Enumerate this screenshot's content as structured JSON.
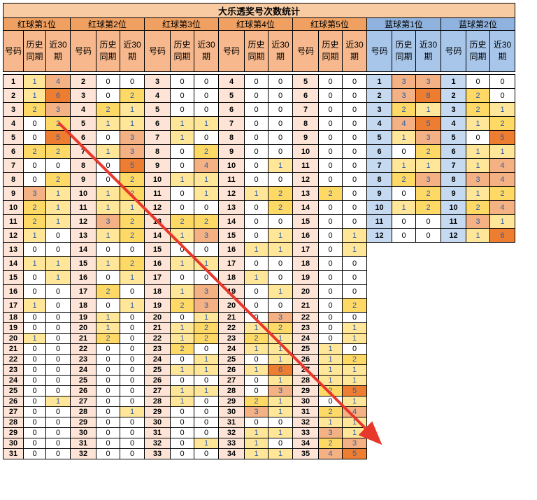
{
  "title": "大乐透奖号次数统计",
  "group_labels": [
    "红球第1位",
    "红球第2位",
    "红球第3位",
    "红球第4位",
    "红球第5位",
    "蓝球第1位",
    "蓝球第2位"
  ],
  "col_headers": {
    "number": "号码",
    "history": "历史同期",
    "recent30": "近30期"
  },
  "red_groups": [
    {
      "rows": [
        [
          "1",
          "1",
          "4"
        ],
        [
          "2",
          "1",
          "6"
        ],
        [
          "3",
          "2",
          "3"
        ],
        [
          "4",
          "0",
          "2"
        ],
        [
          "5",
          "0",
          "5"
        ],
        [
          "6",
          "2",
          "2"
        ],
        [
          "7",
          "0",
          "0"
        ],
        [
          "8",
          "0",
          "2"
        ],
        [
          "9",
          "3",
          "1"
        ],
        [
          "10",
          "2",
          "1"
        ],
        [
          "11",
          "2",
          "1"
        ],
        [
          "12",
          "1",
          "0"
        ],
        [
          "13",
          "0",
          "0"
        ],
        [
          "14",
          "1",
          "1"
        ],
        [
          "15",
          "0",
          "1"
        ],
        [
          "16",
          "0",
          "0"
        ],
        [
          "17",
          "1",
          "0"
        ],
        [
          "18",
          "0",
          "0"
        ],
        [
          "19",
          "0",
          "0"
        ],
        [
          "20",
          "1",
          "0"
        ],
        [
          "21",
          "0",
          "0"
        ],
        [
          "22",
          "0",
          "0"
        ],
        [
          "23",
          "0",
          "0"
        ],
        [
          "24",
          "0",
          "0"
        ],
        [
          "25",
          "0",
          "0"
        ],
        [
          "26",
          "0",
          "1"
        ],
        [
          "27",
          "0",
          "0"
        ],
        [
          "28",
          "0",
          "0"
        ],
        [
          "29",
          "0",
          "0"
        ],
        [
          "30",
          "0",
          "0"
        ],
        [
          "31",
          "0",
          "0"
        ]
      ]
    },
    {
      "rows": [
        [
          "2",
          "0",
          "0"
        ],
        [
          "3",
          "0",
          "2"
        ],
        [
          "4",
          "2",
          "1"
        ],
        [
          "5",
          "1",
          "1"
        ],
        [
          "6",
          "0",
          "3"
        ],
        [
          "7",
          "1",
          "3"
        ],
        [
          "8",
          "0",
          "5"
        ],
        [
          "9",
          "0",
          "2"
        ],
        [
          "10",
          "1",
          "2"
        ],
        [
          "11",
          "1",
          "1"
        ],
        [
          "12",
          "3",
          "2"
        ],
        [
          "13",
          "1",
          "2"
        ],
        [
          "14",
          "0",
          "0"
        ],
        [
          "15",
          "1",
          "2"
        ],
        [
          "16",
          "0",
          "1"
        ],
        [
          "17",
          "2",
          "0"
        ],
        [
          "18",
          "0",
          "1"
        ],
        [
          "19",
          "1",
          "0"
        ],
        [
          "20",
          "1",
          "0"
        ],
        [
          "21",
          "2",
          "0"
        ],
        [
          "22",
          "0",
          "0"
        ],
        [
          "23",
          "0",
          "0"
        ],
        [
          "24",
          "0",
          "0"
        ],
        [
          "25",
          "0",
          "0"
        ],
        [
          "26",
          "0",
          "0"
        ],
        [
          "27",
          "0",
          "0"
        ],
        [
          "28",
          "0",
          "1"
        ],
        [
          "29",
          "0",
          "0"
        ],
        [
          "30",
          "0",
          "0"
        ],
        [
          "31",
          "0",
          "0"
        ],
        [
          "32",
          "0",
          "0"
        ]
      ]
    },
    {
      "rows": [
        [
          "3",
          "0",
          "0"
        ],
        [
          "4",
          "0",
          "0"
        ],
        [
          "5",
          "0",
          "0"
        ],
        [
          "6",
          "1",
          "1"
        ],
        [
          "7",
          "1",
          "0"
        ],
        [
          "8",
          "0",
          "2"
        ],
        [
          "9",
          "0",
          "4"
        ],
        [
          "10",
          "1",
          "1"
        ],
        [
          "11",
          "0",
          "1"
        ],
        [
          "12",
          "0",
          "0"
        ],
        [
          "13",
          "2",
          "2"
        ],
        [
          "14",
          "1",
          "3"
        ],
        [
          "15",
          "0",
          "0"
        ],
        [
          "16",
          "1",
          "1"
        ],
        [
          "17",
          "0",
          "0"
        ],
        [
          "18",
          "1",
          "3"
        ],
        [
          "19",
          "2",
          "3"
        ],
        [
          "20",
          "0",
          "1"
        ],
        [
          "21",
          "1",
          "2"
        ],
        [
          "22",
          "1",
          "2"
        ],
        [
          "23",
          "2",
          "0"
        ],
        [
          "24",
          "0",
          "1"
        ],
        [
          "25",
          "1",
          "1"
        ],
        [
          "26",
          "0",
          "0"
        ],
        [
          "27",
          "1",
          "1"
        ],
        [
          "28",
          "1",
          "0"
        ],
        [
          "29",
          "0",
          "0"
        ],
        [
          "30",
          "0",
          "0"
        ],
        [
          "31",
          "0",
          "0"
        ],
        [
          "32",
          "0",
          "1"
        ],
        [
          "33",
          "0",
          "0"
        ]
      ]
    },
    {
      "rows": [
        [
          "4",
          "0",
          "0"
        ],
        [
          "5",
          "0",
          "0"
        ],
        [
          "6",
          "0",
          "0"
        ],
        [
          "7",
          "0",
          "0"
        ],
        [
          "8",
          "0",
          "0"
        ],
        [
          "9",
          "0",
          "0"
        ],
        [
          "10",
          "0",
          "1"
        ],
        [
          "11",
          "0",
          "0"
        ],
        [
          "12",
          "1",
          "2"
        ],
        [
          "13",
          "0",
          "2"
        ],
        [
          "14",
          "0",
          "0"
        ],
        [
          "15",
          "0",
          "1"
        ],
        [
          "16",
          "1",
          "1"
        ],
        [
          "17",
          "0",
          "0"
        ],
        [
          "18",
          "1",
          "0"
        ],
        [
          "19",
          "0",
          "1"
        ],
        [
          "20",
          "0",
          "0"
        ],
        [
          "21",
          "0",
          "3"
        ],
        [
          "22",
          "1",
          "2"
        ],
        [
          "23",
          "2",
          "1"
        ],
        [
          "24",
          "1",
          "1"
        ],
        [
          "25",
          "0",
          "1"
        ],
        [
          "26",
          "1",
          "6"
        ],
        [
          "27",
          "0",
          "1"
        ],
        [
          "28",
          "0",
          "3"
        ],
        [
          "29",
          "2",
          "1"
        ],
        [
          "30",
          "3",
          "1"
        ],
        [
          "31",
          "0",
          "0"
        ],
        [
          "32",
          "1",
          "1"
        ],
        [
          "33",
          "1",
          "0"
        ],
        [
          "34",
          "1",
          "1"
        ]
      ]
    },
    {
      "rows": [
        [
          "5",
          "0",
          "0"
        ],
        [
          "6",
          "0",
          "0"
        ],
        [
          "7",
          "0",
          "0"
        ],
        [
          "8",
          "0",
          "0"
        ],
        [
          "9",
          "0",
          "0"
        ],
        [
          "10",
          "0",
          "0"
        ],
        [
          "11",
          "0",
          "0"
        ],
        [
          "12",
          "0",
          "0"
        ],
        [
          "13",
          "2",
          "0"
        ],
        [
          "14",
          "0",
          "0"
        ],
        [
          "15",
          "0",
          "0"
        ],
        [
          "16",
          "0",
          "1"
        ],
        [
          "17",
          "0",
          "1"
        ],
        [
          "18",
          "0",
          "0"
        ],
        [
          "19",
          "0",
          "0"
        ],
        [
          "20",
          "0",
          "0"
        ],
        [
          "21",
          "0",
          "2"
        ],
        [
          "22",
          "0",
          "0"
        ],
        [
          "23",
          "0",
          "1"
        ],
        [
          "24",
          "0",
          "1"
        ],
        [
          "25",
          "1",
          "0"
        ],
        [
          "26",
          "1",
          "2"
        ],
        [
          "27",
          "1",
          "1"
        ],
        [
          "28",
          "1",
          "1"
        ],
        [
          "29",
          "2",
          "5"
        ],
        [
          "30",
          "0",
          "1"
        ],
        [
          "31",
          "2",
          "4"
        ],
        [
          "32",
          "1",
          "1"
        ],
        [
          "33",
          "3",
          "1"
        ],
        [
          "34",
          "2",
          "3"
        ],
        [
          "35",
          "4",
          "5"
        ]
      ]
    }
  ],
  "blue_groups": [
    {
      "rows": [
        [
          "1",
          "3",
          "3"
        ],
        [
          "2",
          "3",
          "8"
        ],
        [
          "3",
          "2",
          "1"
        ],
        [
          "4",
          "4",
          "5"
        ],
        [
          "5",
          "1",
          "3"
        ],
        [
          "6",
          "0",
          "2"
        ],
        [
          "7",
          "1",
          "1"
        ],
        [
          "8",
          "2",
          "3"
        ],
        [
          "9",
          "0",
          "2"
        ],
        [
          "10",
          "1",
          "2"
        ],
        [
          "11",
          "0",
          "0"
        ],
        [
          "12",
          "0",
          "0"
        ]
      ]
    },
    {
      "rows": [
        [
          "1",
          "0",
          "0"
        ],
        [
          "2",
          "2",
          "0"
        ],
        [
          "3",
          "2",
          "1"
        ],
        [
          "4",
          "1",
          "2"
        ],
        [
          "5",
          "0",
          "5"
        ],
        [
          "6",
          "1",
          "1"
        ],
        [
          "7",
          "1",
          "4"
        ],
        [
          "8",
          "3",
          "4"
        ],
        [
          "9",
          "1",
          "2"
        ],
        [
          "10",
          "2",
          "4"
        ],
        [
          "11",
          "3",
          "1"
        ],
        [
          "12",
          "1",
          "6"
        ]
      ]
    }
  ],
  "annotation": {
    "type": "arrow",
    "color": "#e8382c",
    "from_cell": "红球第1位-近30期-4",
    "to_cell": "红球第5位-号码-30"
  }
}
